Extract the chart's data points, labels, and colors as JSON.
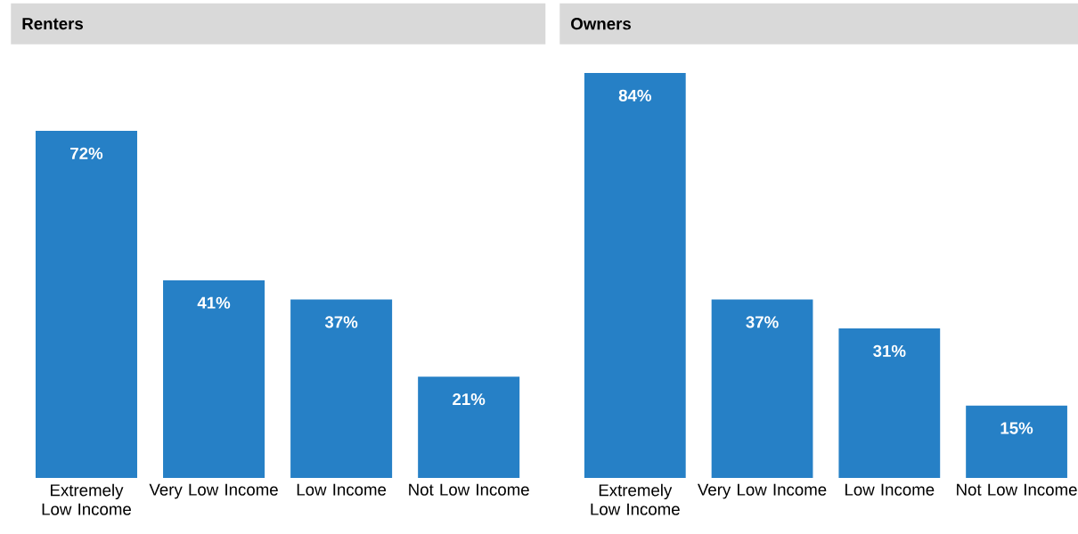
{
  "chart_data": [
    {
      "type": "bar",
      "title": "Renters",
      "categories": [
        "Extremely Low Income",
        "Very Low Income",
        "Low Income",
        "Not Low Income"
      ],
      "values": [
        72,
        41,
        37,
        21
      ],
      "color": "#2680c6",
      "value_labels": [
        "72%",
        "41%",
        "37%",
        "21%"
      ]
    },
    {
      "type": "bar",
      "title": "Owners",
      "categories": [
        "Extremely Low Income",
        "Very Low Income",
        "Low Income",
        "Not Low Income"
      ],
      "values": [
        84,
        37,
        31,
        15
      ],
      "color": "#2680c6",
      "value_labels": [
        "84%",
        "37%",
        "31%",
        "15%"
      ]
    }
  ]
}
